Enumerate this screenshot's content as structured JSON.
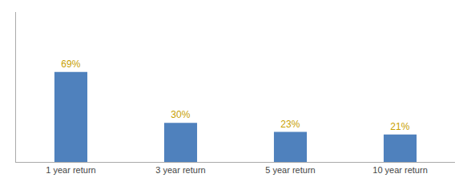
{
  "chart_data": {
    "type": "bar",
    "categories": [
      "1 year return",
      "3 year return",
      "5 year return",
      "10 year return"
    ],
    "values": [
      69,
      30,
      23,
      21
    ],
    "value_labels": [
      "69%",
      "30%",
      "23%",
      "21%"
    ],
    "data_labels": true,
    "color": "#4f81bd",
    "ylim": [
      0,
      115
    ],
    "yticks": [],
    "tick_labels": "x",
    "grid": false
  }
}
